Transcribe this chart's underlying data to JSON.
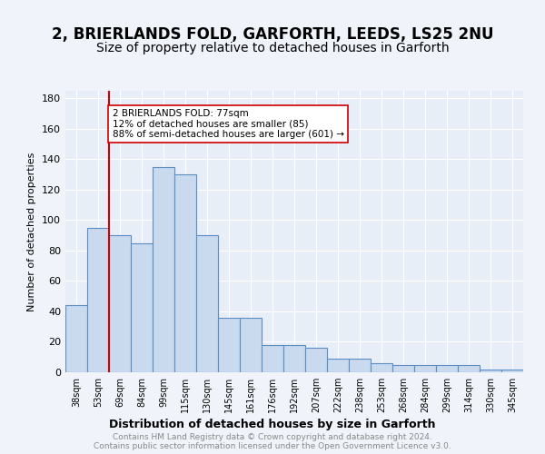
{
  "title1": "2, BRIERLANDS FOLD, GARFORTH, LEEDS, LS25 2NU",
  "title2": "Size of property relative to detached houses in Garforth",
  "xlabel": "Distribution of detached houses by size in Garforth",
  "ylabel": "Number of detached properties",
  "categories": [
    "38sqm",
    "53sqm",
    "69sqm",
    "84sqm",
    "99sqm",
    "115sqm",
    "130sqm",
    "145sqm",
    "161sqm",
    "176sqm",
    "192sqm",
    "207sqm",
    "222sqm",
    "238sqm",
    "253sqm",
    "268sqm",
    "284sqm",
    "299sqm",
    "314sqm",
    "330sqm",
    "345sqm"
  ],
  "values": [
    44,
    95,
    90,
    85,
    135,
    130,
    90,
    36,
    36,
    18,
    18,
    16,
    9,
    9,
    6,
    5,
    5,
    5,
    5,
    2,
    2
  ],
  "bar_color": "#c9d9ee",
  "bar_edge_color": "#5b8fc4",
  "vline_x": 1.5,
  "vline_color": "#cc0000",
  "annotation_text": "2 BRIERLANDS FOLD: 77sqm\n12% of detached houses are smaller (85)\n88% of semi-detached houses are larger (601) →",
  "annotation_box_color": "#ffffff",
  "annotation_box_edge": "#cc0000",
  "ylim": [
    0,
    185
  ],
  "yticks": [
    0,
    20,
    40,
    60,
    80,
    100,
    120,
    140,
    160,
    180
  ],
  "footer1": "Contains HM Land Registry data © Crown copyright and database right 2024.",
  "footer2": "Contains public sector information licensed under the Open Government Licence v3.0.",
  "bg_color": "#f0f4fa",
  "plot_bg": "#e8eef8",
  "title1_fontsize": 12,
  "title2_fontsize": 10
}
